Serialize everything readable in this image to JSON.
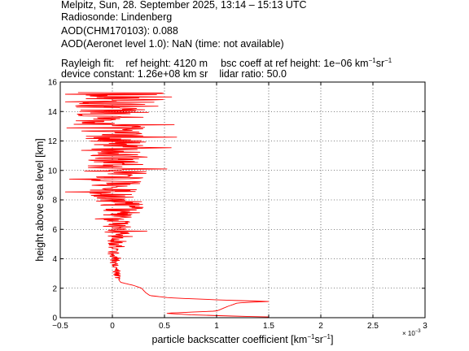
{
  "header": {
    "line1": "Melpitz, Sun, 28. September 2025, 13:14 – 15:13 UTC",
    "line2": "Radiosonde: Lindenberg",
    "line3": "AOD(CHM170103): 0.088",
    "line4": "AOD(Aeronet level 1.0): NaN   (time: not available)",
    "rayleigh_label": "Rayleigh fit:",
    "ref_height": "ref height: 4120 m",
    "bsc_coeff_prefix": "bsc coeff at ref height: 1e−06 km",
    "bsc_coeff_sup1": "−1",
    "bsc_coeff_mid": "sr",
    "bsc_coeff_sup2": "−1",
    "device_constant": "device constant: 1.26e+08 km sr",
    "lidar_ratio": "lidar ratio: 50.0"
  },
  "chart_data": {
    "type": "line",
    "xlabel_prefix": "particle backscatter coefficient [km",
    "xlabel_sup1": "−1",
    "xlabel_mid": "sr",
    "xlabel_sup2": "−1",
    "xlabel_suffix": "]",
    "ylabel": "height above sea level [km]",
    "x_multiplier_base": "× 10",
    "x_multiplier_exp": "−3",
    "xlim": [
      -0.5,
      3.0
    ],
    "ylim": [
      0,
      16
    ],
    "x_ticks": [
      "−0.5",
      "0",
      "0.5",
      "1",
      "1.5",
      "2",
      "2.5",
      "3"
    ],
    "y_ticks": [
      "0",
      "2",
      "4",
      "6",
      "8",
      "10",
      "12",
      "14",
      "16"
    ],
    "grid": true,
    "line_color": "#ff0000",
    "profile_x_scale": "x values in units of 1e-3 km^-1 sr^-1",
    "profile": [
      {
        "h": 0.05,
        "x": 1.5
      },
      {
        "h": 0.1,
        "x": 1.2
      },
      {
        "h": 0.2,
        "x": 0.75
      },
      {
        "h": 0.3,
        "x": 0.5
      },
      {
        "h": 0.45,
        "x": 1.0
      },
      {
        "h": 0.6,
        "x": 1.05
      },
      {
        "h": 0.8,
        "x": 1.12
      },
      {
        "h": 1.0,
        "x": 1.2
      },
      {
        "h": 1.1,
        "x": 1.5
      },
      {
        "h": 1.2,
        "x": 1.05
      },
      {
        "h": 1.35,
        "x": 0.55
      },
      {
        "h": 1.5,
        "x": 0.36
      },
      {
        "h": 1.7,
        "x": 0.32
      },
      {
        "h": 2.0,
        "x": 0.28
      },
      {
        "h": 2.2,
        "x": 0.2
      },
      {
        "h": 2.4,
        "x": 0.08
      },
      {
        "h": 2.6,
        "x": 0.06
      },
      {
        "h": 3.0,
        "x": 0.04
      },
      {
        "h": 3.5,
        "x": 0.02
      },
      {
        "h": 4.0,
        "x": 0.03
      },
      {
        "h": 4.5,
        "x": 0.02
      },
      {
        "h": 5.0,
        "x": 0.04
      },
      {
        "h": 5.5,
        "x": 0.05
      },
      {
        "h": 6.0,
        "x": 0.05
      },
      {
        "h": 6.5,
        "x": 0.06
      },
      {
        "h": 7.0,
        "x": 0.08
      },
      {
        "h": 7.5,
        "x": 0.1
      },
      {
        "h": 8.0,
        "x": 0.05
      },
      {
        "h": 8.5,
        "x": 0.02
      },
      {
        "h": 9.0,
        "x": 0.0
      },
      {
        "h": 9.5,
        "x": 0.02
      },
      {
        "h": 10.0,
        "x": 0.05
      },
      {
        "h": 10.5,
        "x": 0.03
      },
      {
        "h": 11.0,
        "x": 0.0
      },
      {
        "h": 11.5,
        "x": 0.0
      },
      {
        "h": 12.0,
        "x": 0.02
      },
      {
        "h": 12.5,
        "x": 0.0
      },
      {
        "h": 13.0,
        "x": -0.02
      },
      {
        "h": 13.5,
        "x": 0.0
      },
      {
        "h": 14.0,
        "x": 0.05
      },
      {
        "h": 14.5,
        "x": 0.03
      },
      {
        "h": 15.0,
        "x": 0.1
      },
      {
        "h": 15.3,
        "x": 0.0
      }
    ],
    "noise_amplitude": [
      {
        "h": 2.6,
        "a": 0.04
      },
      {
        "h": 4.0,
        "a": 0.05
      },
      {
        "h": 5.5,
        "a": 0.12
      },
      {
        "h": 7.0,
        "a": 0.18
      },
      {
        "h": 8.5,
        "a": 0.25
      },
      {
        "h": 10.0,
        "a": 0.32
      },
      {
        "h": 11.5,
        "a": 0.3
      },
      {
        "h": 13.0,
        "a": 0.35
      },
      {
        "h": 14.5,
        "a": 0.4
      },
      {
        "h": 15.3,
        "a": 0.55
      }
    ]
  }
}
